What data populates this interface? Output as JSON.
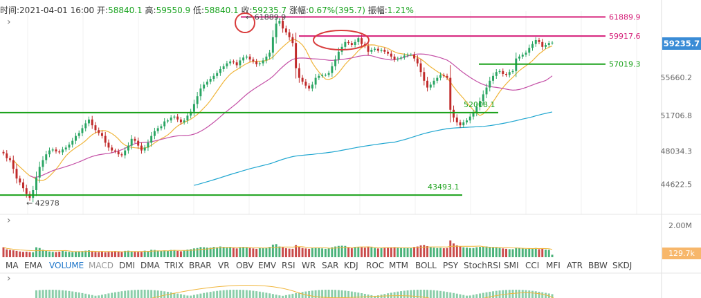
{
  "info": {
    "time_label": "时间:",
    "time": "2021-04-01 16:00",
    "open_label": "开:",
    "open": "58840.1",
    "high_label": "高:",
    "high": "59550.9",
    "low_label": "低:",
    "low": "58840.1",
    "close_label": "收:",
    "close": "59235.7",
    "change_label": "涨幅:",
    "change": "0.67%(395.7)",
    "amp_label": "振幅:",
    "amp": "1.21%"
  },
  "price_badge": "59235.7",
  "volume_badge": "129.7k",
  "indicator_tabs": [
    "MA",
    "EMA",
    "VOLUME",
    "MACD",
    "DMI",
    "DMA",
    "TRIX",
    "BRAR",
    "VR",
    "OBV",
    "EMV",
    "RSI",
    "WR",
    "SAR",
    "KDJ",
    "ROC",
    "MTM",
    "BOLL",
    "PSY",
    "StochRSI",
    "SMI",
    "CCI",
    "MFI",
    "ATR",
    "BBW",
    "SKDJ"
  ],
  "active_tab": "VOLUME",
  "colors": {
    "up": "#2aa563",
    "down": "#c02a2a",
    "ma_short": "#f0b53a",
    "ma_mid": "#c44fa6",
    "ma_long": "#1fa6d0",
    "support": "#18a018",
    "resistance": "#d41c77",
    "marker": "#d83a3a",
    "badge": "#3a8cd6"
  },
  "chart_data": {
    "type": "candlestick",
    "price_axis": {
      "ticks": [
        44622.5,
        48034.3,
        51706.8,
        55660.2,
        59235.7
      ],
      "ylim": [
        42500,
        62500
      ]
    },
    "volume_axis": {
      "ticks_text": [
        "2.00M"
      ],
      "ylim": [
        0,
        2300000
      ]
    },
    "horizontal_levels": [
      {
        "value": 61889.9,
        "label": "61889.9",
        "color": "#d41c77"
      },
      {
        "value": 59917.6,
        "label": "59917.6",
        "color": "#d41c77"
      },
      {
        "value": 57019.3,
        "label": "57019.3",
        "color": "#18a018"
      },
      {
        "value": 52008.1,
        "label": "52008.1",
        "color": "#18a018"
      },
      {
        "value": 43493.1,
        "label": "43493.1",
        "color": "#18a018"
      }
    ],
    "annotations": [
      {
        "text": "← 61889.9",
        "value": 61889.9
      },
      {
        "text": "← 42978",
        "value": 42978
      }
    ],
    "close_series": [
      47800,
      47300,
      47100,
      46200,
      45200,
      44800,
      44200,
      43600,
      43200,
      44000,
      45300,
      46400,
      47100,
      47700,
      48100,
      48200,
      48000,
      47900,
      48200,
      48400,
      48700,
      49100,
      49600,
      49900,
      50400,
      50900,
      51300,
      50700,
      50200,
      49900,
      49600,
      48900,
      48400,
      48100,
      48000,
      47700,
      47600,
      48100,
      48600,
      49300,
      49100,
      48600,
      48100,
      48400,
      48900,
      49600,
      50100,
      50400,
      50600,
      51100,
      51200,
      51500,
      51600,
      51300,
      51000,
      51200,
      51700,
      52100,
      52900,
      53700,
      54500,
      54900,
      55200,
      55500,
      55800,
      56100,
      56500,
      56800,
      57100,
      57300,
      57200,
      56900,
      57400,
      57700,
      57800,
      57500,
      57300,
      57000,
      57100,
      57400,
      57800,
      58200,
      59800,
      61200,
      61500,
      60700,
      60300,
      59800,
      59200,
      56600,
      55600,
      55200,
      54800,
      54500,
      54900,
      55600,
      55800,
      55900,
      55900,
      56100,
      56800,
      57500,
      58300,
      58800,
      59300,
      59200,
      59000,
      59300,
      59700,
      59100,
      58900,
      58300,
      58500,
      58600,
      58400,
      58500,
      58300,
      58100,
      57800,
      57500,
      57600,
      57700,
      57900,
      58000,
      58000,
      57600,
      57100,
      56200,
      55300,
      54600,
      54900,
      55300,
      55600,
      55900,
      55800,
      55600,
      52300,
      51500,
      51000,
      50700,
      51000,
      51200,
      51600,
      52000,
      52600,
      53200,
      53900,
      54600,
      55300,
      55800,
      56200,
      56300,
      56000,
      55900,
      56200,
      56300,
      57600,
      57800,
      58000,
      58200,
      58700,
      59100,
      59500,
      59300,
      58800,
      59000,
      59200,
      59235.7
    ],
    "volume_series": [
      520000,
      410000,
      380000,
      360000,
      330000,
      300000,
      280000,
      290000,
      270000,
      260000,
      520000,
      480000,
      390000,
      330000,
      300000,
      280000,
      270000,
      290000,
      330000,
      300000,
      280000,
      270000,
      290000,
      310000,
      320000,
      340000,
      360000,
      310000,
      280000,
      270000,
      290000,
      260000,
      280000,
      300000,
      320000,
      290000,
      270000,
      330000,
      340000,
      300000,
      300000,
      280000,
      280000,
      340000,
      320000,
      390000,
      380000,
      350000,
      340000,
      360000,
      340000,
      380000,
      380000,
      330000,
      310000,
      350000,
      400000,
      420000,
      460000,
      480000,
      530000,
      520000,
      500000,
      500000,
      540000,
      520000,
      560000,
      540000,
      500000,
      520000,
      480000,
      460000,
      520000,
      540000,
      510000,
      480000,
      460000,
      440000,
      470000,
      480000,
      500000,
      540000,
      660000,
      680000,
      560000,
      520000,
      470000,
      450000,
      440000,
      640000,
      560000,
      480000,
      460000,
      440000,
      470000,
      500000,
      480000,
      460000,
      440000,
      460000,
      520000,
      560000,
      590000,
      600000,
      590000,
      500000,
      470000,
      520000,
      540000,
      520000,
      500000,
      560000,
      520000,
      480000,
      460000,
      470000,
      480000,
      500000,
      520000,
      530000,
      510000,
      480000,
      490000,
      480000,
      470000,
      540000,
      560000,
      620000,
      640000,
      580000,
      520000,
      500000,
      480000,
      490000,
      470000,
      480000,
      880000,
      720000,
      620000,
      560000,
      520000,
      500000,
      480000,
      480000,
      520000,
      540000,
      560000,
      560000,
      540000,
      520000,
      500000,
      480000,
      460000,
      440000,
      420000,
      420000,
      500000,
      480000,
      460000,
      440000,
      460000,
      460000,
      480000,
      420000,
      440000,
      400000,
      390000,
      129700
    ]
  }
}
